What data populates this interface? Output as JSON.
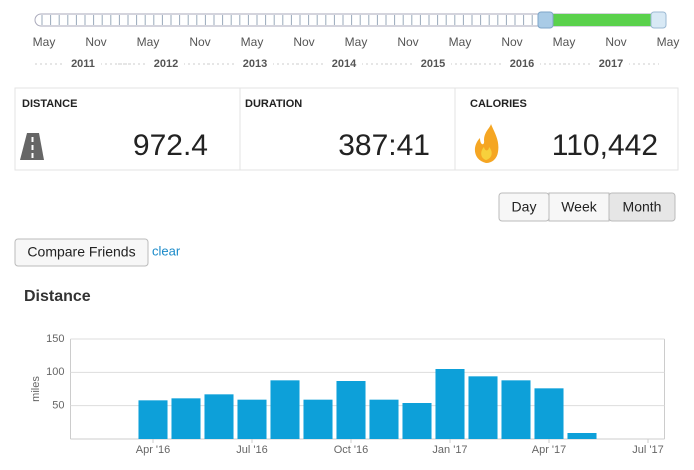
{
  "slider": {
    "months": [
      "May",
      "Nov",
      "May",
      "Nov",
      "May",
      "Nov",
      "May",
      "Nov",
      "May",
      "Nov",
      "May",
      "Nov",
      "May"
    ],
    "years": [
      "2011",
      "2012",
      "2013",
      "2014",
      "2015",
      "2016",
      "2017"
    ]
  },
  "stats": [
    {
      "label": "DISTANCE",
      "value": "972.4"
    },
    {
      "label": "DURATION",
      "value": "387:41"
    },
    {
      "label": "CALORIES",
      "value": "110,442"
    }
  ],
  "period_buttons": [
    "Day",
    "Week",
    "Month"
  ],
  "compare_button": "Compare Friends",
  "clear_link": "clear",
  "chart_data": {
    "type": "bar",
    "title": "Distance",
    "y_label": "miles",
    "color": "#0da0d9",
    "categories": [
      null,
      null,
      "Apr '16",
      null,
      null,
      "Jul '16",
      null,
      null,
      "Oct '16",
      null,
      null,
      "Jan '17",
      null,
      null,
      "Apr '17",
      null,
      null,
      "Jul '17"
    ],
    "values": [
      null,
      null,
      58,
      61,
      67,
      59,
      88,
      59,
      87,
      59,
      54,
      105,
      94,
      88,
      76,
      9,
      null,
      null
    ],
    "ylim": [
      0,
      150
    ],
    "yticks": [
      50,
      100,
      150
    ],
    "grid": true
  }
}
